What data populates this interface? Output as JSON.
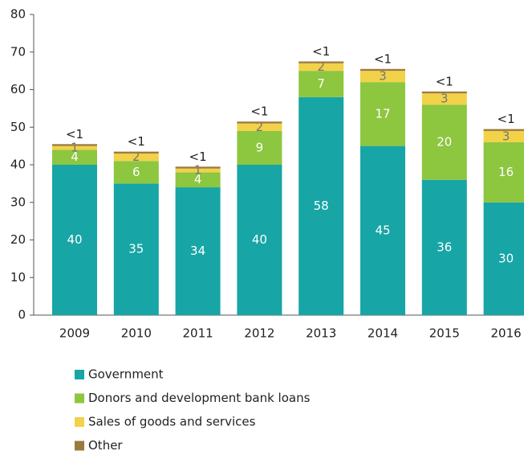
{
  "chart_data": {
    "type": "stacked_bar",
    "categories": [
      "2009",
      "2010",
      "2011",
      "2012",
      "2013",
      "2014",
      "2015",
      "2016"
    ],
    "series": [
      {
        "name": "Government",
        "color": "#17a5a6",
        "values": [
          40,
          35,
          34,
          40,
          58,
          45,
          36,
          30
        ]
      },
      {
        "name": "Donors and development bank loans",
        "color": "#8dc63f",
        "values": [
          4,
          6,
          4,
          9,
          7,
          17,
          20,
          16
        ]
      },
      {
        "name": "Sales of goods and services",
        "color": "#f1d249",
        "values": [
          1,
          2,
          1,
          2,
          2,
          3,
          3,
          3
        ]
      },
      {
        "name": "Other",
        "color": "#9c7a3c",
        "values": [
          0.5,
          0.5,
          0.5,
          0.5,
          0.5,
          0.5,
          0.5,
          0.5
        ],
        "value_labels": [
          "<1",
          "<1",
          "<1",
          "<1",
          "<1",
          "<1",
          "<1",
          "<1"
        ]
      }
    ],
    "ylim": [
      0,
      80
    ],
    "yticks": [
      0,
      10,
      20,
      30,
      40,
      50,
      60,
      70,
      80
    ],
    "legend": "bottom"
  }
}
